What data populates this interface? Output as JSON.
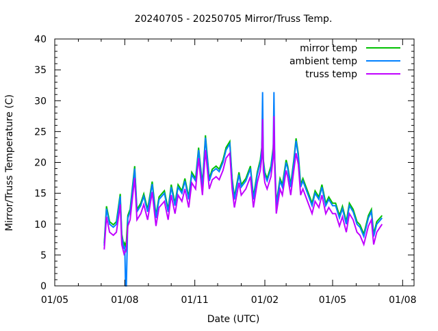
{
  "chart_data": {
    "type": "line",
    "title": "20240705 - 20250705 Mirror/Truss Temp.",
    "xlabel": "Date (UTC)",
    "ylabel": "Mirror/Truss Temperature (C)",
    "x_units": "days since 2024-07-05",
    "xlim": [
      -65,
      407
    ],
    "ylim": [
      0,
      40
    ],
    "x_ticks": [
      {
        "value": -65,
        "label": "01/05"
      },
      {
        "value": 27,
        "label": "01/08"
      },
      {
        "value": 119,
        "label": "01/11"
      },
      {
        "value": 211,
        "label": "01/02"
      },
      {
        "value": 300,
        "label": "01/05"
      },
      {
        "value": 392,
        "label": "01/08"
      }
    ],
    "x_minor_ticks": [
      -34,
      -4,
      58,
      88,
      149,
      180,
      239,
      270,
      331,
      361
    ],
    "y_ticks": [
      0,
      5,
      10,
      15,
      20,
      25,
      30,
      35,
      40
    ],
    "grid": false,
    "legend_position": "top-right",
    "x": [
      0,
      3,
      7,
      12,
      16,
      21,
      23,
      26,
      27,
      28,
      29,
      31,
      34,
      40,
      43,
      48,
      52,
      57,
      63,
      68,
      72,
      79,
      84,
      88,
      93,
      97,
      102,
      106,
      111,
      115,
      120,
      124,
      129,
      133,
      138,
      142,
      147,
      151,
      156,
      160,
      165,
      168,
      171,
      177,
      180,
      186,
      192,
      196,
      201,
      205,
      207,
      208,
      209,
      211,
      214,
      219,
      222,
      223,
      224,
      226,
      231,
      234,
      239,
      241,
      245,
      249,
      252,
      255,
      258,
      261,
      267,
      273,
      277,
      282,
      286,
      291,
      295,
      300,
      304,
      309,
      313,
      318,
      322,
      327,
      332,
      336,
      341,
      347,
      351,
      354,
      358,
      365
    ],
    "series": [
      {
        "name": "mirror temp",
        "color": "#00c000",
        "values": [
          6.9,
          12.9,
          10.4,
          9.9,
          10.4,
          14.9,
          8.4,
          6.4,
          6.9,
          6.5,
          7,
          11.4,
          12.4,
          19.4,
          12.4,
          13.4,
          14.9,
          12.4,
          16.9,
          11.4,
          14.4,
          15.4,
          12.4,
          16.4,
          13.4,
          16.4,
          15.4,
          17.4,
          14.4,
          18.4,
          17.4,
          22.4,
          16.4,
          24.4,
          17.4,
          18.9,
          19.4,
          18.9,
          20.4,
          22.4,
          23.4,
          17.4,
          14.4,
          18.4,
          16.4,
          17.4,
          19.4,
          14.4,
          18.4,
          20.4,
          22.4,
          26,
          20.4,
          18.4,
          17.4,
          19.4,
          22.4,
          24.5,
          20.4,
          13.4,
          17.4,
          16.4,
          20.4,
          19.4,
          16.4,
          20.4,
          23.9,
          21.4,
          16.4,
          17.4,
          15.4,
          13.4,
          15.4,
          14.4,
          16.4,
          13.4,
          14.4,
          13.4,
          13.4,
          11.4,
          12.9,
          10.4,
          13.4,
          12.4,
          10.4,
          9.9,
          8.4,
          11.4,
          12.4,
          8.4,
          10.4,
          11.4
        ]
      },
      {
        "name": "ambient temp",
        "color": "#0080ff",
        "values": [
          6.5,
          12.5,
          10,
          9.5,
          10,
          14.5,
          8,
          6,
          6.5,
          0,
          0,
          11,
          12,
          19,
          12,
          13,
          14.5,
          12,
          16.5,
          11,
          14,
          15,
          12,
          16,
          13,
          16,
          15,
          17,
          14,
          18,
          17,
          22,
          16,
          24,
          17,
          18.5,
          19,
          18.5,
          20,
          22,
          23,
          17,
          14,
          18,
          16,
          17,
          19,
          14,
          18,
          20,
          22,
          31.4,
          20,
          18,
          17,
          19,
          22,
          31.4,
          20,
          13,
          17,
          16,
          20,
          19,
          16,
          20,
          23.5,
          21,
          16,
          17,
          15,
          13,
          15,
          14,
          16,
          13,
          14,
          13,
          13,
          11,
          12.5,
          10,
          13,
          12,
          10,
          9.5,
          8,
          11,
          12,
          8,
          10,
          11
        ]
      },
      {
        "name": "truss temp",
        "color": "#c000ff",
        "values": [
          5.9,
          11.2,
          8.7,
          8.2,
          8.7,
          13.2,
          6.7,
          5.2,
          5.5,
          5.5,
          6,
          9.7,
          10.7,
          17.5,
          10.7,
          11.7,
          13.2,
          10.7,
          15.2,
          9.7,
          12.7,
          13.7,
          10.7,
          14.7,
          11.7,
          14.7,
          13.7,
          15.7,
          12.7,
          16.7,
          15.7,
          20.7,
          14.7,
          22,
          15.7,
          17.2,
          17.7,
          17.2,
          18.7,
          20.7,
          21.5,
          15.7,
          12.7,
          16.7,
          14.7,
          15.7,
          17.7,
          12.7,
          16.7,
          18.7,
          20.7,
          27,
          18.7,
          16.7,
          15.7,
          17.7,
          20.7,
          27.5,
          18.7,
          11.7,
          15.7,
          14.7,
          18.7,
          17.7,
          14.7,
          18.7,
          21.5,
          19.7,
          14.7,
          15.7,
          13.7,
          11.7,
          13.7,
          12.7,
          14.7,
          11.7,
          12.7,
          11.7,
          11.7,
          9.7,
          11.2,
          8.7,
          11.7,
          10.7,
          8.7,
          8.2,
          6.7,
          9.7,
          10.7,
          6.7,
          8.7,
          10
        ]
      }
    ]
  }
}
